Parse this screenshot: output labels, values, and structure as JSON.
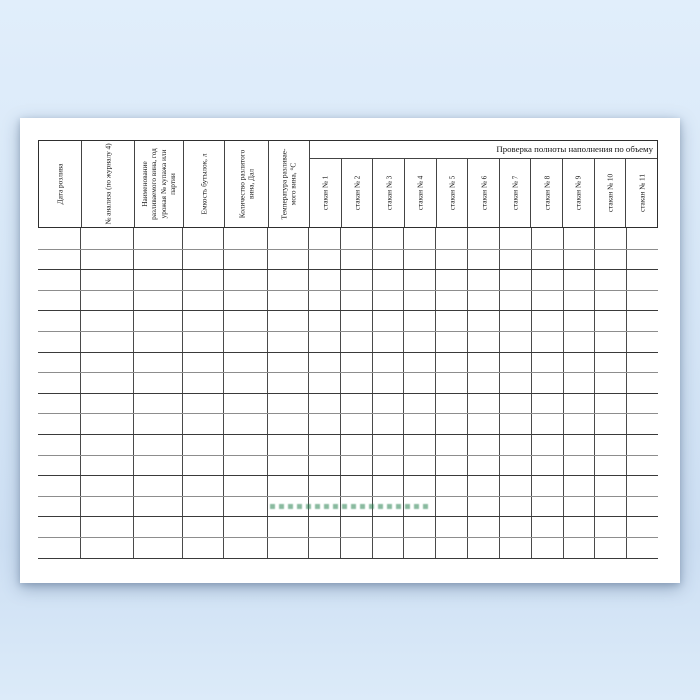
{
  "page": {
    "background_top_color": "#e1eefb",
    "background_bottom_color": "#dcebf9",
    "paper_color": "#ffffff"
  },
  "table": {
    "volume_check_header": "Проверка полноты наполнения по объему",
    "columns": [
      {
        "label": "Дата розлива"
      },
      {
        "label": "№ анализа (по журналу 4)"
      },
      {
        "label": "Наименование разливаемого вина, год урожая № купажа или партии"
      },
      {
        "label": "Емкость бутылок, л"
      },
      {
        "label": "Количество разлитого вина, Дал"
      },
      {
        "label": "Температура разливае-мого вина, °С"
      }
    ],
    "glass_columns": [
      "стакан № 1",
      "стакан № 2",
      "стакан № 3",
      "стакан № 4",
      "стакан № 5",
      "стакан № 6",
      "стакан № 7",
      "стакан № 8",
      "стакан № 9",
      "стакан № 10",
      "стакан № 11"
    ],
    "body_row_count": 16
  },
  "watermark": {
    "color": "#2e8250"
  }
}
